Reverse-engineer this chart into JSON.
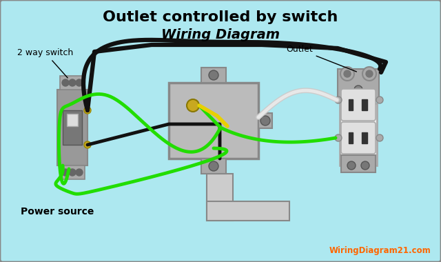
{
  "title_line1": "Outlet controlled by switch",
  "title_line2": "Wiring Diagram",
  "bg_color": "#ADE8F0",
  "label_2way": "2 way switch",
  "label_outlet": "Outlet",
  "label_power": "Power source",
  "label_website": "WiringDiagram21.com",
  "wire_black": "#111111",
  "wire_green": "#22DD00",
  "wire_white": "#CCCCCC",
  "wire_yellow": "#E8D000",
  "gray_dark": "#888888",
  "gray_mid": "#AAAAAA",
  "gray_light": "#CCCCCC",
  "outlet_white": "#EEEEEE",
  "gold": "#C8A820"
}
